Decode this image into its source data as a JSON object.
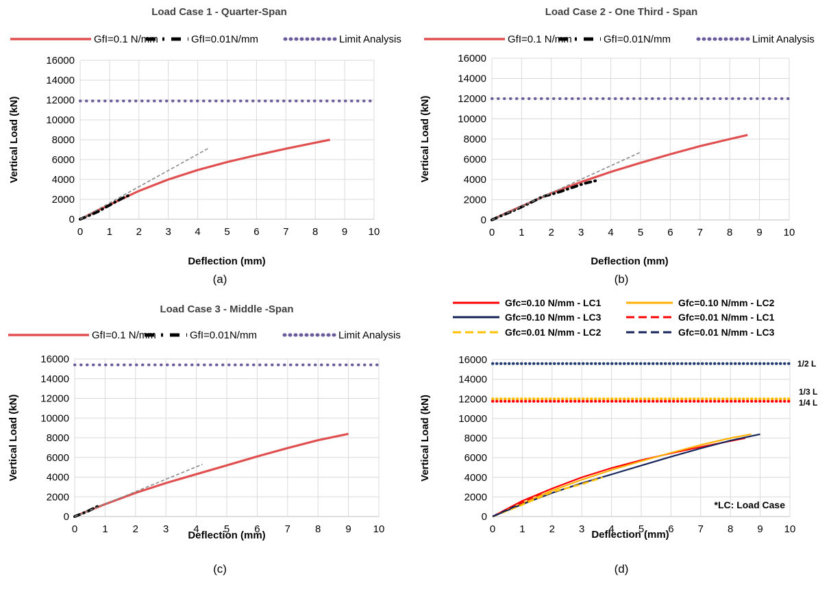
{
  "chart_data": [
    {
      "type": "line",
      "title": "Load Case 1 - Quarter-Span",
      "caption": "(a)",
      "xlabel": "Deflection (mm)",
      "ylabel": "Vertical Load (kN)",
      "xlim": [
        0,
        10
      ],
      "ylim": [
        0,
        16000
      ],
      "x_ticks": [
        "0",
        "1",
        "2",
        "3",
        "4",
        "5",
        "6",
        "7",
        "8",
        "9",
        "10"
      ],
      "y_ticks": [
        "0",
        "2000",
        "4000",
        "6000",
        "8000",
        "10000",
        "12000",
        "14000",
        "16000"
      ],
      "grid": true,
      "legend_position": "top",
      "series": [
        {
          "name": "GfI=0.1 N/mm",
          "style": "solid",
          "color": "#E05050",
          "x": [
            0,
            0.5,
            1,
            1.5,
            2,
            3,
            4,
            5,
            6,
            7,
            8,
            8.5
          ],
          "y": [
            0,
            750,
            1450,
            2150,
            2850,
            4000,
            4950,
            5750,
            6450,
            7100,
            7700,
            8000
          ]
        },
        {
          "name": "GfI=0.01N/mm",
          "style": "dashdot",
          "color": "#000000",
          "x": [
            0,
            0.2,
            0.4,
            0.6,
            0.9,
            1.3,
            1.5,
            1.7
          ],
          "y": [
            0,
            250,
            500,
            750,
            1250,
            1900,
            2200,
            2450
          ]
        },
        {
          "name": "Limit Analysis",
          "style": "dotted",
          "color": "#6B5B9A",
          "x": [
            0,
            10
          ],
          "y": [
            11900,
            11900
          ]
        },
        {
          "name": "",
          "style": "dashed",
          "color": "#888888",
          "x": [
            0,
            4.4
          ],
          "y": [
            0,
            7200
          ]
        }
      ]
    },
    {
      "type": "line",
      "title": "Load Case 2 - One Third - Span",
      "caption": "(b)",
      "xlabel": "Deflection (mm)",
      "ylabel": "Vertical Load (kN)",
      "xlim": [
        0,
        10
      ],
      "ylim": [
        0,
        16000
      ],
      "x_ticks": [
        "0",
        "1",
        "2",
        "3",
        "4",
        "5",
        "6",
        "7",
        "8",
        "9",
        "10"
      ],
      "y_ticks": [
        "0",
        "2000",
        "4000",
        "6000",
        "8000",
        "10000",
        "12000",
        "14000",
        "16000"
      ],
      "grid": true,
      "legend_position": "top",
      "series": [
        {
          "name": "GfI=0.1 N/mm",
          "style": "solid",
          "color": "#E05050",
          "x": [
            0,
            0.5,
            1,
            2,
            3,
            4,
            5,
            6,
            7,
            8,
            8.6
          ],
          "y": [
            0,
            700,
            1350,
            2650,
            3750,
            4750,
            5650,
            6500,
            7300,
            8000,
            8400
          ]
        },
        {
          "name": "GfI=0.01N/mm",
          "style": "dashdot",
          "color": "#000000",
          "x": [
            0,
            0.3,
            0.6,
            0.9,
            1.3,
            1.7,
            2.2,
            2.7,
            3.1,
            3.6
          ],
          "y": [
            0,
            400,
            750,
            1150,
            1700,
            2300,
            2700,
            3200,
            3600,
            3950
          ]
        },
        {
          "name": "Limit Analysis",
          "style": "dotted",
          "color": "#6B5B9A",
          "x": [
            0,
            10
          ],
          "y": [
            12000,
            12000
          ]
        },
        {
          "name": "",
          "style": "dashed",
          "color": "#888888",
          "x": [
            0,
            5.0
          ],
          "y": [
            0,
            6700
          ]
        }
      ]
    },
    {
      "type": "line",
      "title": "Load Case 3 - Middle -Span",
      "caption": "(c)",
      "xlabel": "Deflection (mm)",
      "ylabel": "Vertical Load (kN)",
      "xlim": [
        0,
        10
      ],
      "ylim": [
        0,
        16000
      ],
      "x_ticks": [
        "0",
        "1",
        "2",
        "3",
        "4",
        "5",
        "6",
        "7",
        "8",
        "9",
        "10"
      ],
      "y_ticks": [
        "0",
        "2000",
        "4000",
        "6000",
        "8000",
        "10000",
        "12000",
        "14000",
        "16000"
      ],
      "grid": true,
      "legend_position": "top",
      "series": [
        {
          "name": "GfI=0.1 N/mm",
          "style": "solid",
          "color": "#E05050",
          "x": [
            0,
            0.5,
            1,
            2,
            3,
            4,
            5,
            6,
            7,
            8,
            9
          ],
          "y": [
            0,
            650,
            1250,
            2400,
            3400,
            4300,
            5200,
            6100,
            6950,
            7750,
            8400
          ]
        },
        {
          "name": "GfI=0.01N/mm",
          "style": "dashdot",
          "color": "#000000",
          "x": [
            0,
            0.2,
            0.4,
            0.8
          ],
          "y": [
            0,
            250,
            500,
            1100
          ]
        },
        {
          "name": "Limit Analysis",
          "style": "dotted",
          "color": "#6B5B9A",
          "x": [
            0,
            10
          ],
          "y": [
            15400,
            15400
          ]
        },
        {
          "name": "",
          "style": "dashed",
          "color": "#888888",
          "x": [
            0,
            4.2
          ],
          "y": [
            0,
            5300
          ]
        }
      ]
    },
    {
      "type": "line",
      "title": "",
      "caption": "(d)",
      "xlabel": "Deflection (mm)",
      "ylabel": "Vertical Load (kN)",
      "xlim": [
        0,
        10
      ],
      "ylim": [
        0,
        16000
      ],
      "x_ticks": [
        "0",
        "1",
        "2",
        "3",
        "4",
        "5",
        "6",
        "7",
        "8",
        "9",
        "10"
      ],
      "y_ticks": [
        "0",
        "2000",
        "4000",
        "6000",
        "8000",
        "10000",
        "12000",
        "14000",
        "16000"
      ],
      "grid": true,
      "legend_position": "top",
      "annotations": [
        "1/2 L",
        "1/3 L",
        "1/4 L",
        "*LC: Load Case"
      ],
      "series": [
        {
          "name": "Gfc=0.10 N/mm - LC1",
          "style": "solid",
          "color": "#FF0000",
          "x": [
            0,
            1,
            2,
            3,
            4,
            5,
            6,
            7,
            8,
            8.5
          ],
          "y": [
            0,
            1600,
            2850,
            4000,
            4950,
            5750,
            6450,
            7100,
            7700,
            8000
          ]
        },
        {
          "name": "Gfc=0.10 N/mm - LC2",
          "style": "solid",
          "color": "#FFB000",
          "x": [
            0,
            1,
            2,
            3,
            4,
            5,
            6,
            7,
            8,
            8.7
          ],
          "y": [
            0,
            1350,
            2650,
            3750,
            4750,
            5650,
            6500,
            7300,
            8000,
            8400
          ]
        },
        {
          "name": "Gfc=0.10 N/mm - LC3",
          "style": "solid",
          "color": "#14225A",
          "x": [
            0,
            1,
            2,
            3,
            4,
            5,
            6,
            7,
            8,
            9
          ],
          "y": [
            0,
            1250,
            2400,
            3400,
            4300,
            5200,
            6100,
            6950,
            7750,
            8400
          ]
        },
        {
          "name": "Gfc=0.01 N/mm - LC1",
          "style": "dashed",
          "color": "#FF0000",
          "x": [
            0,
            1,
            1.7
          ],
          "y": [
            0,
            1450,
            2450
          ]
        },
        {
          "name": "Gfc=0.01 N/mm - LC2",
          "style": "dashed",
          "color": "#FFC000",
          "x": [
            0,
            1,
            2,
            3,
            3.7
          ],
          "y": [
            0,
            1200,
            2500,
            3300,
            4000
          ]
        },
        {
          "name": "Gfc=0.01 N/mm - LC3",
          "style": "dashed",
          "color": "#14225A",
          "x": [
            0,
            0.8
          ],
          "y": [
            0,
            1100
          ]
        },
        {
          "name": "",
          "style": "dotted",
          "color": "#1F3A6E",
          "x": [
            0,
            10
          ],
          "y": [
            15600,
            15600
          ]
        },
        {
          "name": "",
          "style": "dotted",
          "color": "#FFC000",
          "x": [
            0,
            10
          ],
          "y": [
            12000,
            12000
          ]
        },
        {
          "name": "",
          "style": "dotted",
          "color": "#FF0000",
          "x": [
            0,
            10
          ],
          "y": [
            11750,
            11750
          ]
        }
      ]
    }
  ]
}
